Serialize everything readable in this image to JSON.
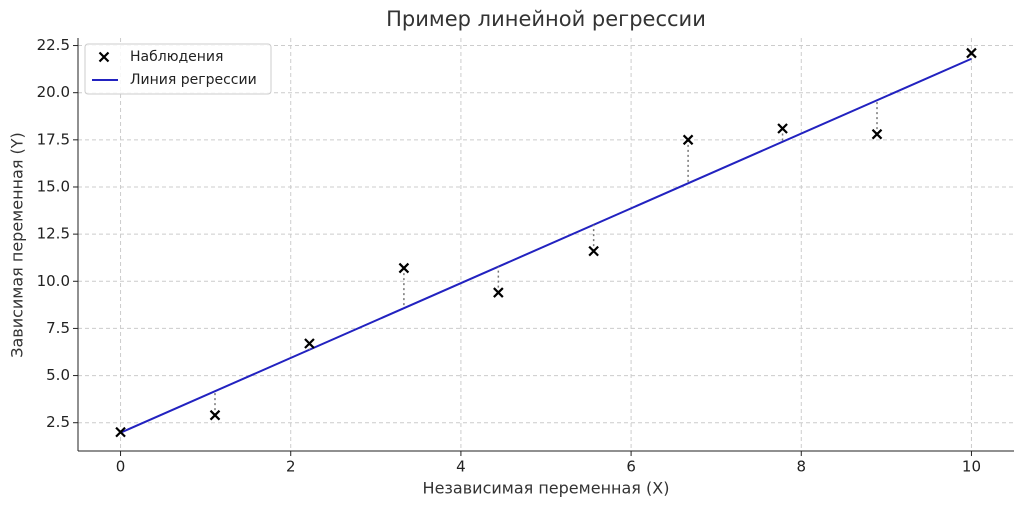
{
  "chart_data": {
    "type": "scatter",
    "title": "Пример линейной регрессии",
    "x_label": "Независимая переменная (X)",
    "y_label": "Зависимая переменная (Y)",
    "series": [
      {
        "name": "Наблюдения",
        "type": "scatter",
        "color": "#000000",
        "x": [
          0,
          1.11,
          2.22,
          3.33,
          4.44,
          5.56,
          6.67,
          7.78,
          8.89,
          10
        ],
        "values": [
          2.0,
          2.9,
          6.7,
          10.7,
          9.4,
          11.6,
          17.5,
          18.1,
          17.8,
          22.1
        ]
      },
      {
        "name": "Линия регрессии",
        "type": "line",
        "color": "#2222c0",
        "x": [
          0,
          10
        ],
        "values": [
          1.97,
          21.8
        ]
      }
    ],
    "xlim": [
      -0.5,
      10.5
    ],
    "xticks": [
      0,
      2,
      4,
      6,
      8,
      10
    ],
    "ylim": [
      1.0,
      22.9
    ],
    "yticks": [
      2.5,
      {
        "value": 5,
        "label": "5.0"
      },
      7.5,
      {
        "value": 10,
        "label": "10.0"
      },
      12.5,
      {
        "value": 15,
        "label": "15.0"
      },
      17.5,
      {
        "value": 20,
        "label": "20.0"
      },
      22.5
    ],
    "grid": true,
    "legend": "upper left"
  }
}
